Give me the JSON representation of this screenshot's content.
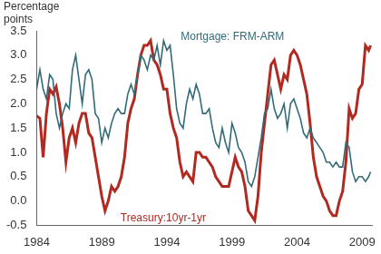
{
  "chart_data": {
    "type": "line",
    "y_label": "Percentage points",
    "x": [
      1984,
      1984.25,
      1984.5,
      1984.75,
      1985,
      1985.25,
      1985.5,
      1985.75,
      1986,
      1986.25,
      1986.5,
      1986.75,
      1987,
      1987.25,
      1987.5,
      1987.75,
      1988,
      1988.25,
      1988.5,
      1988.75,
      1989,
      1989.25,
      1989.5,
      1989.75,
      1990,
      1990.25,
      1990.5,
      1990.75,
      1991,
      1991.25,
      1991.5,
      1991.75,
      1992,
      1992.25,
      1992.5,
      1992.75,
      1993,
      1993.25,
      1993.5,
      1993.75,
      1994,
      1994.25,
      1994.5,
      1994.75,
      1995,
      1995.25,
      1995.5,
      1995.75,
      1996,
      1996.25,
      1996.5,
      1996.75,
      1997,
      1997.25,
      1997.5,
      1997.75,
      1998,
      1998.25,
      1998.5,
      1998.75,
      1999,
      1999.25,
      1999.5,
      1999.75,
      2000,
      2000.25,
      2000.5,
      2000.75,
      2001,
      2001.25,
      2001.5,
      2001.75,
      2002,
      2002.25,
      2002.5,
      2002.75,
      2003,
      2003.25,
      2003.5,
      2003.75,
      2004,
      2004.25,
      2004.5,
      2004.75,
      2005,
      2005.25,
      2005.5,
      2005.75,
      2006,
      2006.25,
      2006.5,
      2006.75,
      2007,
      2007.25,
      2007.5,
      2007.75,
      2008,
      2008.25,
      2008.5,
      2008.75,
      2009,
      2009.25,
      2009.5,
      2009.65
    ],
    "series": [
      {
        "name": "Mortgage: FRM-ARM",
        "color": "#336a78",
        "values": [
          2.3,
          2.7,
          2.3,
          2.1,
          2.6,
          2.5,
          1.8,
          1.5,
          1.8,
          2.0,
          1.9,
          2.7,
          3.0,
          2.5,
          2.0,
          2.6,
          2.7,
          2.5,
          1.8,
          1.7,
          1.2,
          1.5,
          1.3,
          1.6,
          1.8,
          1.9,
          1.8,
          1.8,
          2.2,
          2.4,
          2.2,
          2.6,
          3.0,
          2.9,
          2.7,
          3.0,
          2.9,
          3.2,
          2.8,
          3.3,
          3.1,
          3.2,
          2.6,
          1.9,
          1.6,
          1.5,
          2.0,
          2.3,
          2.1,
          2.4,
          2.2,
          1.8,
          1.8,
          1.9,
          1.5,
          1.2,
          1.1,
          1.5,
          1.2,
          1.0,
          1.6,
          1.4,
          1.1,
          1.0,
          0.8,
          0.4,
          0.3,
          0.5,
          0.9,
          1.3,
          1.8,
          1.9,
          2.3,
          1.9,
          1.7,
          1.8,
          2.0,
          1.5,
          2.0,
          2.1,
          1.9,
          1.7,
          1.4,
          1.3,
          1.5,
          1.3,
          1.2,
          1.1,
          1.0,
          0.8,
          0.8,
          0.7,
          0.8,
          0.7,
          0.7,
          1.2,
          1.1,
          0.6,
          0.4,
          0.5,
          0.5,
          0.4,
          0.5,
          0.6
        ]
      },
      {
        "name": "Treasury:10yr-1yr",
        "color": "#b02a22",
        "values": [
          1.75,
          1.7,
          0.9,
          1.8,
          2.3,
          2.2,
          2.35,
          2.0,
          1.5,
          0.8,
          1.3,
          1.5,
          1.2,
          1.6,
          1.8,
          1.8,
          1.4,
          1.3,
          0.9,
          0.5,
          0.1,
          -0.2,
          0.0,
          0.3,
          0.2,
          0.3,
          0.5,
          0.9,
          1.6,
          1.9,
          2.1,
          2.6,
          3.0,
          3.2,
          3.2,
          3.3,
          2.9,
          2.8,
          2.6,
          2.3,
          2.3,
          1.8,
          1.5,
          1.3,
          0.8,
          0.5,
          0.6,
          0.5,
          0.4,
          1.0,
          1.0,
          0.9,
          0.9,
          0.8,
          0.7,
          0.5,
          0.4,
          0.3,
          0.3,
          0.3,
          0.6,
          0.9,
          0.7,
          0.6,
          0.3,
          -0.2,
          -0.3,
          -0.4,
          0.1,
          1.0,
          1.6,
          2.2,
          2.8,
          2.9,
          2.6,
          2.3,
          2.6,
          2.5,
          3.0,
          3.1,
          3.0,
          2.8,
          2.5,
          2.2,
          1.6,
          0.9,
          0.5,
          0.3,
          0.1,
          0.0,
          -0.2,
          -0.3,
          -0.3,
          0.0,
          0.2,
          0.8,
          1.9,
          1.7,
          1.8,
          2.3,
          2.4,
          3.2,
          3.1,
          3.2
        ]
      }
    ],
    "xlim": [
      1984,
      2009.75
    ],
    "xticks": [
      1984,
      1989,
      1994,
      1999,
      2004,
      2009
    ],
    "ylim": [
      -0.5,
      3.5
    ],
    "yticks": [
      -0.5,
      {
        "value": 0,
        "label": "0.0"
      },
      0.5,
      {
        "value": 1,
        "label": "1.0"
      },
      1.5,
      {
        "value": 2,
        "label": "2.0"
      },
      2.5,
      {
        "value": 3,
        "label": "3.0"
      },
      3.5
    ],
    "grid": false
  }
}
